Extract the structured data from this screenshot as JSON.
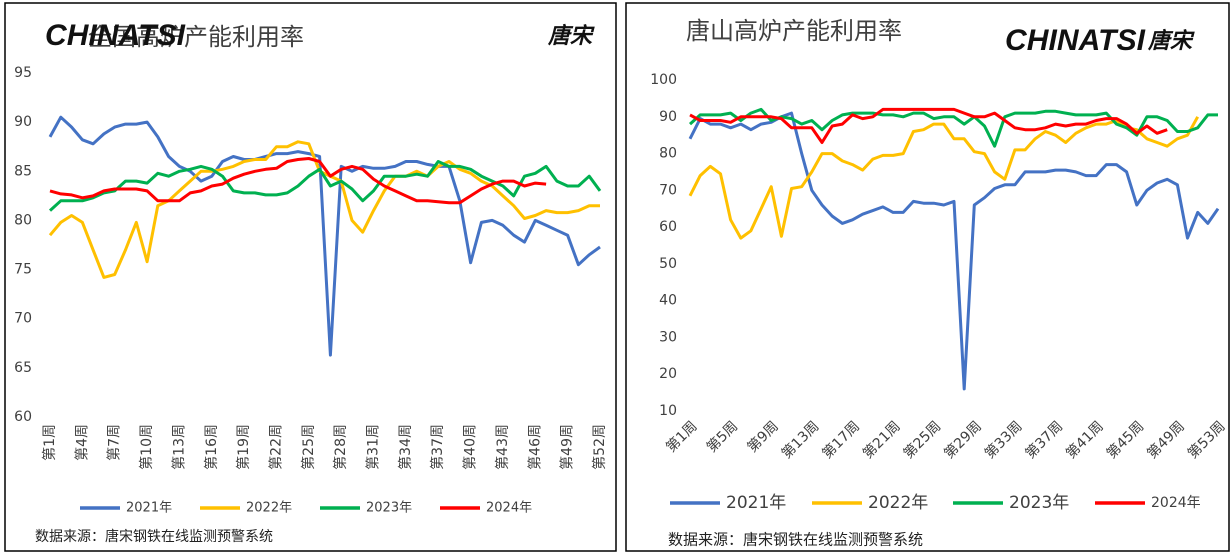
{
  "chart_data": [
    {
      "type": "line",
      "title": "全国高炉产能利用率",
      "logo": "CHINATSI",
      "logo_cn": "唐宋",
      "source": "数据来源：唐宋钢铁在线监测预警系统",
      "categories": [
        "第1周",
        null,
        null,
        "第4周",
        null,
        null,
        "第7周",
        null,
        null,
        "第10周",
        null,
        null,
        "第13周",
        null,
        null,
        "第16周",
        null,
        null,
        "第19周",
        null,
        null,
        "第22周",
        null,
        null,
        "第25周",
        null,
        null,
        "第28周",
        null,
        null,
        "第31周",
        null,
        null,
        "第34周",
        null,
        null,
        "第37周",
        null,
        null,
        "第40周",
        null,
        null,
        "第43周",
        null,
        null,
        "第46周",
        null,
        null,
        "第49周",
        null,
        null,
        "第52周"
      ],
      "ylim": [
        60,
        95
      ],
      "yticks": [
        60,
        65,
        70,
        75,
        80,
        85,
        90,
        95
      ],
      "grid": false,
      "series": [
        {
          "name": "2021年",
          "color": "#4472c4",
          "values": [
            88.5,
            90.5,
            89.5,
            88.2,
            87.8,
            88.8,
            89.5,
            89.8,
            89.8,
            90,
            88.5,
            86.5,
            85.5,
            85,
            84,
            84.5,
            86,
            86.5,
            86.2,
            86.2,
            86.5,
            86.8,
            86.8,
            87,
            86.8,
            86.5,
            66.3,
            85.5,
            85,
            85.5,
            85.3,
            85.3,
            85.5,
            86,
            86,
            85.7,
            85.5,
            85.5,
            82,
            75.7,
            79.8,
            80,
            79.5,
            78.5,
            77.8,
            80,
            79.5,
            79,
            78.5,
            75.5,
            76.5,
            77.3
          ]
        },
        {
          "name": "2022年",
          "color": "#ffc000",
          "values": [
            78.5,
            79.8,
            80.5,
            79.8,
            77,
            74.2,
            74.5,
            77,
            79.8,
            75.8,
            81.5,
            82,
            83,
            84,
            85,
            85,
            85.2,
            85.5,
            86,
            86.2,
            86.2,
            87.5,
            87.5,
            88,
            87.8,
            85,
            84.5,
            84,
            80,
            78.8,
            81,
            83,
            84.5,
            84.5,
            85,
            84.5,
            85.5,
            86,
            85.2,
            84.8,
            84,
            83.5,
            82.5,
            81.5,
            80.2,
            80.5,
            81,
            80.8,
            80.8,
            81,
            81.5,
            81.5
          ]
        },
        {
          "name": "2023年",
          "color": "#00b050",
          "values": [
            81,
            82,
            82,
            82,
            82.3,
            82.8,
            83,
            84,
            84,
            83.8,
            84.8,
            84.5,
            85,
            85.2,
            85.5,
            85.2,
            84.5,
            83,
            82.8,
            82.8,
            82.6,
            82.6,
            82.8,
            83.5,
            84.5,
            85.2,
            83.5,
            84,
            83.2,
            82,
            83,
            84.5,
            84.5,
            84.5,
            84.7,
            84.5,
            86,
            85.5,
            85.5,
            85.2,
            84.5,
            84,
            83.5,
            82.5,
            84.5,
            84.8,
            85.5,
            84,
            83.5,
            83.5,
            84.5,
            83
          ]
        },
        {
          "name": "2024年",
          "color": "#ff0000",
          "values": [
            83,
            82.7,
            82.6,
            82.3,
            82.5,
            83,
            83.2,
            83.2,
            83.2,
            83,
            82,
            82,
            82,
            82.8,
            83,
            83.5,
            83.7,
            84.3,
            84.7,
            85,
            85.2,
            85.3,
            86,
            86.2,
            86.3,
            86,
            84.5,
            85.2,
            85.5,
            85.2,
            84.2,
            83.5,
            83,
            82.5,
            82,
            82,
            81.9,
            81.8,
            81.8,
            82.5,
            83.2,
            83.7,
            84,
            84,
            83.5,
            83.8,
            83.7,
            null,
            null,
            null,
            null,
            null
          ]
        }
      ]
    },
    {
      "type": "line",
      "title": "唐山高炉产能利用率",
      "logo": "CHINATSI",
      "logo_cn": "唐宋",
      "source": "数据来源：唐宋钢铁在线监测预警系统",
      "categories": [
        "第1周",
        null,
        null,
        null,
        "第5周",
        null,
        null,
        null,
        "第9周",
        null,
        null,
        null,
        "第13周",
        null,
        null,
        null,
        "第17周",
        null,
        null,
        null,
        "第21周",
        null,
        null,
        null,
        "第25周",
        null,
        null,
        null,
        "第29周",
        null,
        null,
        null,
        "第33周",
        null,
        null,
        null,
        "第37周",
        null,
        null,
        null,
        "第41周",
        null,
        null,
        null,
        "第45周",
        null,
        null,
        null,
        "第49周",
        null,
        null,
        null,
        "第53周"
      ],
      "ylim": [
        10,
        100
      ],
      "yticks": [
        10,
        20,
        30,
        40,
        50,
        60,
        70,
        80,
        90,
        100
      ],
      "grid": false,
      "series": [
        {
          "name": "2021年",
          "color": "#4472c4",
          "values": [
            84,
            89.5,
            88,
            88,
            87,
            88,
            86.5,
            88,
            88.5,
            90,
            91,
            80,
            70,
            66,
            63,
            61,
            62,
            63.5,
            64.5,
            65.5,
            64,
            64,
            67,
            66.5,
            66.5,
            66,
            67,
            16,
            66,
            68,
            70.5,
            71.5,
            71.5,
            75,
            75,
            75,
            75.5,
            75.5,
            75,
            74,
            74,
            77,
            77,
            75,
            66,
            70,
            72,
            73,
            71.5,
            57,
            64,
            61,
            65
          ]
        },
        {
          "name": "2022年",
          "color": "#ffc000",
          "values": [
            68.5,
            74,
            76.5,
            74.5,
            62,
            57,
            59,
            65,
            71,
            57.5,
            70.5,
            71,
            75,
            80,
            80,
            78,
            77,
            75.5,
            78.5,
            79.5,
            79.5,
            80,
            86,
            86.5,
            88,
            88,
            84,
            84,
            80.5,
            80,
            75,
            73,
            81,
            81,
            84,
            86,
            85,
            83,
            85.5,
            87,
            88,
            88,
            89,
            87,
            86.5,
            84,
            83,
            82,
            84,
            85,
            90,
            null,
            null
          ]
        },
        {
          "name": "2023年",
          "color": "#00b050",
          "values": [
            88,
            90.5,
            90.5,
            90.5,
            91,
            89,
            91,
            92,
            89,
            90,
            89.5,
            88,
            89,
            86.5,
            89,
            90.5,
            91,
            91,
            91,
            90.5,
            90.5,
            90,
            91,
            91,
            89.5,
            90,
            90,
            88,
            90,
            87.5,
            82,
            90,
            91,
            91,
            91,
            91.5,
            91.5,
            91,
            90.5,
            90.5,
            90.5,
            91,
            88,
            87,
            85,
            90,
            90,
            89,
            86,
            86,
            87,
            90.5,
            90.5
          ]
        },
        {
          "name": "2024年",
          "color": "#ff0000",
          "values": [
            90.5,
            89,
            89,
            89,
            88.5,
            90,
            90,
            90,
            90,
            89.5,
            87,
            87,
            87,
            83,
            87.5,
            88,
            90.5,
            89.5,
            90,
            92,
            92,
            92,
            92,
            92,
            92,
            92,
            92,
            91,
            90,
            90,
            91,
            89,
            87,
            86.5,
            86.5,
            87,
            88,
            87.5,
            88,
            88,
            89,
            89.5,
            89.5,
            88,
            85.5,
            87.5,
            85.5,
            86.5,
            null,
            null,
            null,
            null,
            null
          ]
        }
      ]
    }
  ]
}
